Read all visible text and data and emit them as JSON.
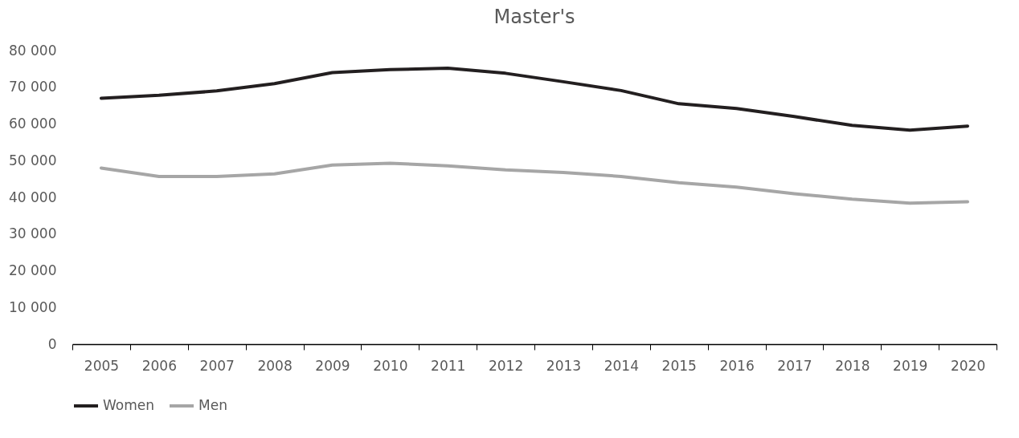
{
  "chart_data": {
    "type": "line",
    "title": "Master's",
    "categories": [
      "2005",
      "2006",
      "2007",
      "2008",
      "2009",
      "2010",
      "2011",
      "2012",
      "2013",
      "2014",
      "2015",
      "2016",
      "2017",
      "2018",
      "2019",
      "2020"
    ],
    "series": [
      {
        "name": "Women",
        "color": "#231f20",
        "values": [
          67000,
          67800,
          69000,
          71000,
          74000,
          74800,
          75200,
          73800,
          71500,
          69100,
          65500,
          64200,
          62000,
          59600,
          58300,
          59400
        ]
      },
      {
        "name": "Men",
        "color": "#a6a6a6",
        "values": [
          48000,
          45700,
          45700,
          46400,
          48800,
          49300,
          48600,
          47500,
          46800,
          45700,
          44000,
          42800,
          41000,
          39500,
          38400,
          38800
        ]
      }
    ],
    "ylim": [
      0,
      80000
    ],
    "yticks": [
      {
        "value": 0,
        "label": "0"
      },
      {
        "value": 10000,
        "label": "10 000"
      },
      {
        "value": 20000,
        "label": "20 000"
      },
      {
        "value": 30000,
        "label": "30 000"
      },
      {
        "value": 40000,
        "label": "40 000"
      },
      {
        "value": 50000,
        "label": "50 000"
      },
      {
        "value": 60000,
        "label": "60 000"
      },
      {
        "value": 70000,
        "label": "70 000"
      },
      {
        "value": 80000,
        "label": "80 000"
      }
    ],
    "grid": false,
    "legend": "bottom",
    "marker": "none",
    "line_style": "solid"
  }
}
